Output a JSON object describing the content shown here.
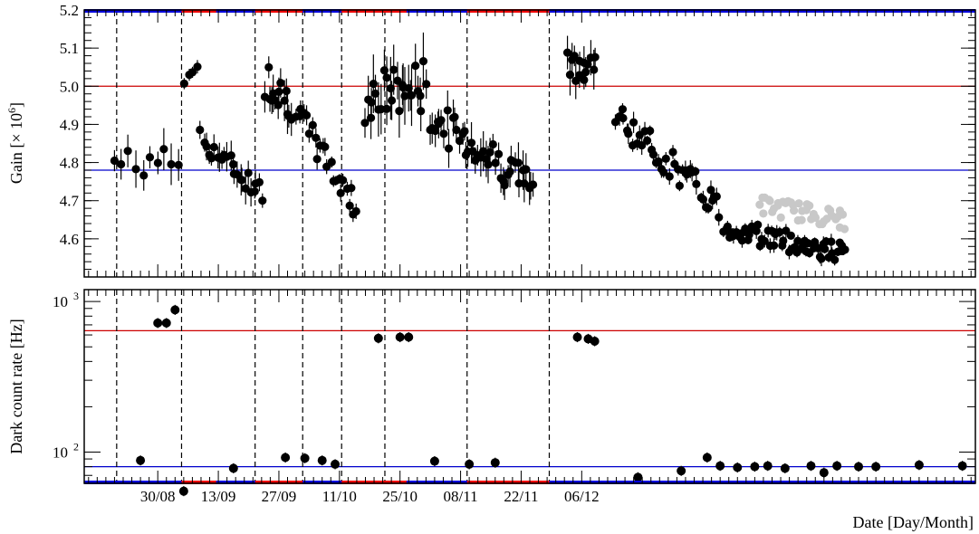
{
  "chart_data": [
    {
      "type": "scatter",
      "panel": "top",
      "ylabel_main": "Gain [× 10",
      "ylabel_exp": "6",
      "ylabel_tail": "]",
      "ylim": [
        4.5,
        5.2
      ],
      "yticks": [
        4.6,
        4.7,
        4.8,
        4.9,
        5.0,
        5.1,
        5.2
      ],
      "ytick_labels": [
        "4.6",
        "4.7",
        "4.8",
        "4.9",
        "5.0",
        "5.1",
        "5.2"
      ],
      "reference_lines": [
        {
          "value": 5.0,
          "color": "#cc0000"
        },
        {
          "value": 4.78,
          "color": "#0000cc"
        }
      ],
      "series": [
        {
          "color": "#000000",
          "segments": [
            {
              "start": 0,
              "end": 15,
              "from": 4.8,
              "to": 4.8,
              "amp": 0.04,
              "n": 10,
              "err": 0.04
            },
            {
              "start": 16,
              "end": 19,
              "from": 5.02,
              "to": 5.06,
              "amp": 0.03,
              "n": 4,
              "err": 0.02
            },
            {
              "start": 20,
              "end": 34,
              "from": 4.86,
              "to": 4.72,
              "amp": 0.03,
              "n": 24,
              "err": 0.03
            },
            {
              "start": 35,
              "end": 41,
              "from": 5.02,
              "to": 4.96,
              "amp": 0.05,
              "n": 14,
              "err": 0.04
            },
            {
              "start": 42,
              "end": 56,
              "from": 4.93,
              "to": 4.68,
              "amp": 0.04,
              "n": 24,
              "err": 0.02
            },
            {
              "start": 58,
              "end": 72,
              "from": 4.97,
              "to": 5.0,
              "amp": 0.07,
              "n": 28,
              "err": 0.06
            },
            {
              "start": 73,
              "end": 97,
              "from": 4.92,
              "to": 4.74,
              "amp": 0.05,
              "n": 44,
              "err": 0.04
            },
            {
              "start": 105,
              "end": 111,
              "from": 5.05,
              "to": 5.06,
              "amp": 0.04,
              "n": 14,
              "err": 0.04
            },
            {
              "start": 116,
              "end": 140,
              "from": 4.92,
              "to": 4.68,
              "amp": 0.04,
              "n": 42,
              "err": 0.02
            },
            {
              "start": 141,
              "end": 169,
              "from": 4.63,
              "to": 4.56,
              "amp": 0.03,
              "n": 60,
              "err": 0.015
            }
          ]
        },
        {
          "color": "#c8c8c8",
          "segments": [
            {
              "start": 149,
              "end": 169,
              "from": 4.69,
              "to": 4.65,
              "amp": 0.025,
              "n": 40,
              "err": 0
            }
          ]
        }
      ]
    },
    {
      "type": "scatter",
      "panel": "bottom",
      "ylabel": "Dark count rate [Hz]",
      "yscale": "log",
      "ylim": [
        62,
        1200
      ],
      "ytick_base": "10",
      "ytick_exps": [
        "2",
        "3"
      ],
      "reference_lines": [
        {
          "value": 640,
          "color": "#cc0000"
        },
        {
          "value": 80,
          "color": "#0000cc"
        }
      ],
      "points": [
        {
          "x": 6,
          "y": 88
        },
        {
          "x": 10,
          "y": 720
        },
        {
          "x": 12,
          "y": 720
        },
        {
          "x": 14,
          "y": 880
        },
        {
          "x": 16,
          "y": 55
        },
        {
          "x": 27.5,
          "y": 78
        },
        {
          "x": 39.5,
          "y": 92
        },
        {
          "x": 44,
          "y": 91
        },
        {
          "x": 48,
          "y": 88
        },
        {
          "x": 51,
          "y": 83
        },
        {
          "x": 61,
          "y": 570
        },
        {
          "x": 66,
          "y": 580
        },
        {
          "x": 68,
          "y": 580
        },
        {
          "x": 74,
          "y": 87
        },
        {
          "x": 82,
          "y": 83
        },
        {
          "x": 88,
          "y": 85
        },
        {
          "x": 107,
          "y": 580
        },
        {
          "x": 109.5,
          "y": 565
        },
        {
          "x": 111,
          "y": 545
        },
        {
          "x": 121,
          "y": 68
        },
        {
          "x": 131,
          "y": 75
        },
        {
          "x": 137,
          "y": 92
        },
        {
          "x": 140,
          "y": 81
        },
        {
          "x": 144,
          "y": 79
        },
        {
          "x": 148,
          "y": 80
        },
        {
          "x": 151,
          "y": 81
        },
        {
          "x": 155,
          "y": 78
        },
        {
          "x": 161,
          "y": 81
        },
        {
          "x": 164,
          "y": 73
        },
        {
          "x": 167,
          "y": 81
        },
        {
          "x": 172,
          "y": 80
        },
        {
          "x": 176,
          "y": 80
        },
        {
          "x": 186,
          "y": 82
        },
        {
          "x": 196,
          "y": 81
        }
      ]
    }
  ],
  "xaxis": {
    "label": "Date [Day/Month]",
    "range": [
      -7,
      199
    ],
    "ticks": [
      {
        "day": 10,
        "label": "30/08"
      },
      {
        "day": 24,
        "label": "13/09"
      },
      {
        "day": 38,
        "label": "27/09"
      },
      {
        "day": 52,
        "label": "11/10"
      },
      {
        "day": 66,
        "label": "25/10"
      },
      {
        "day": 80,
        "label": "08/11"
      },
      {
        "day": 94,
        "label": "22/11"
      },
      {
        "day": 108,
        "label": "06/12"
      }
    ],
    "dividers": [
      0.5,
      15.5,
      32.5,
      43.5,
      52.5,
      62.5,
      81.5,
      100.5
    ]
  },
  "status_bar": {
    "colors": {
      "on": "#ee0000",
      "off": "#0000dd"
    },
    "red_ranges": [
      [
        15.5,
        23.5
      ],
      [
        32.5,
        43.5
      ],
      [
        52.5,
        67.5
      ],
      [
        81.5,
        100.5
      ]
    ]
  },
  "colors": {
    "points": "#000000",
    "grey_series": "#c8c8c8",
    "gain_ref_high": "#cc0000",
    "gain_ref_low": "#0000cc"
  }
}
